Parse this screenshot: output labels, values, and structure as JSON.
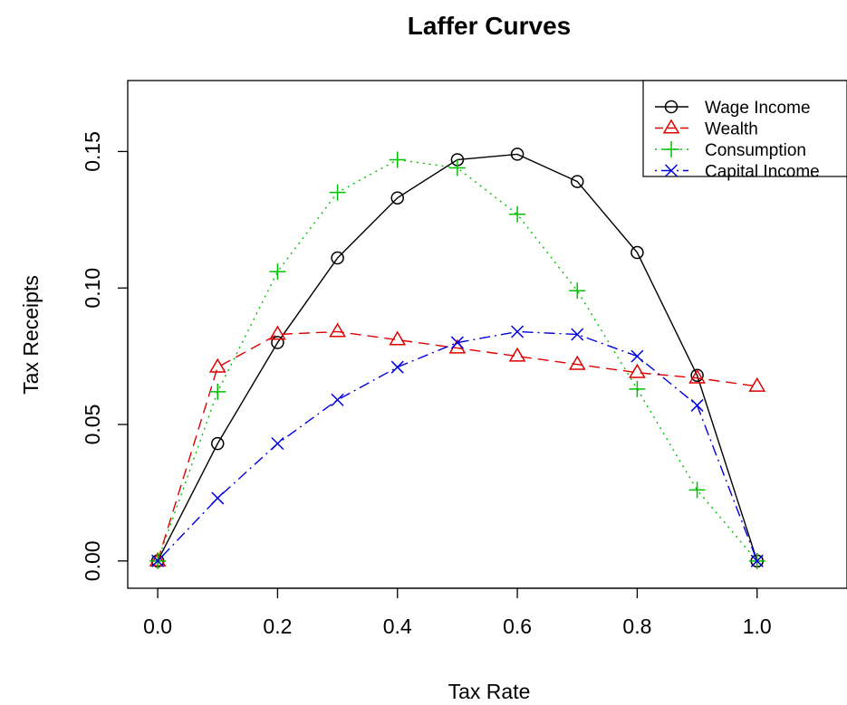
{
  "chart_data": {
    "type": "line",
    "title": "Laffer Curves",
    "xlabel": "Tax Rate",
    "ylabel": "Tax Receipts",
    "xlim": [
      -0.05,
      1.15
    ],
    "ylim": [
      -0.01,
      0.176
    ],
    "x_ticks": [
      0.0,
      0.2,
      0.4,
      0.6,
      0.8,
      1.0
    ],
    "x_tick_labels": [
      "0.0",
      "0.2",
      "0.4",
      "0.6",
      "0.8",
      "1.0"
    ],
    "y_ticks": [
      0.0,
      0.05,
      0.1,
      0.15
    ],
    "y_tick_labels": [
      "0.00",
      "0.05",
      "0.10",
      "0.15"
    ],
    "grid": false,
    "legend_position": "top-right",
    "x": [
      0.0,
      0.1,
      0.2,
      0.3,
      0.4,
      0.5,
      0.6,
      0.7,
      0.8,
      0.9,
      1.0
    ],
    "series": [
      {
        "name": "Wage Income",
        "color": "#000000",
        "marker": "circle",
        "line": "solid",
        "values": [
          0.0,
          0.043,
          0.08,
          0.111,
          0.133,
          0.147,
          0.149,
          0.139,
          0.113,
          0.068,
          0.0
        ]
      },
      {
        "name": "Wealth",
        "color": "#DF0000",
        "marker": "triangle",
        "line": "dashed",
        "values": [
          0.0,
          0.071,
          0.083,
          0.084,
          0.081,
          0.078,
          0.075,
          0.072,
          0.069,
          0.067,
          0.064
        ]
      },
      {
        "name": "Consumption",
        "color": "#00C000",
        "marker": "plus",
        "line": "dotted",
        "values": [
          0.0,
          0.062,
          0.106,
          0.135,
          0.147,
          0.144,
          0.127,
          0.099,
          0.063,
          0.026,
          0.0
        ]
      },
      {
        "name": "Capital Income",
        "color": "#0000DF",
        "marker": "cross",
        "line": "dotdash",
        "values": [
          0.0,
          0.023,
          0.043,
          0.059,
          0.071,
          0.08,
          0.084,
          0.083,
          0.075,
          0.057,
          0.0
        ]
      }
    ]
  }
}
